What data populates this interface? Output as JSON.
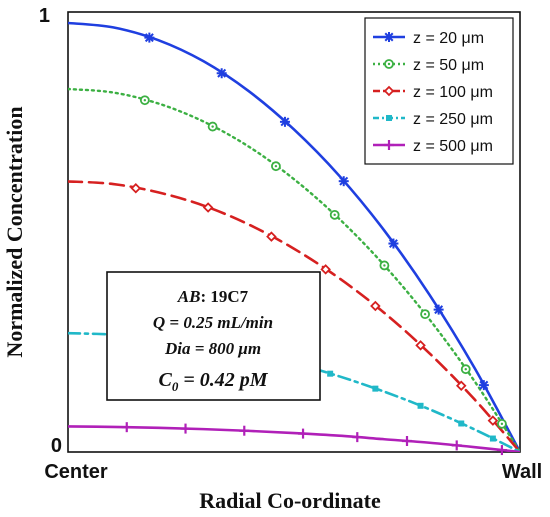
{
  "chart_data": {
    "type": "line",
    "title": "",
    "xlabel": "Radial Co-ordinate",
    "ylabel": "Normalized Concentration",
    "x_tick_labels": [
      "Center",
      "Wall"
    ],
    "y_tick_labels": [
      "0",
      "1"
    ],
    "xlim": [
      0,
      1
    ],
    "ylim": [
      0,
      1
    ],
    "grid": false,
    "legend_position": "top-right",
    "x": [
      0,
      0.1,
      0.2,
      0.3,
      0.4,
      0.5,
      0.6,
      0.7,
      0.8,
      0.9,
      1.0
    ],
    "series": [
      {
        "name": "z = 20 μm",
        "color": "#1f3fe0",
        "style": "solid",
        "marker": "asterisk",
        "values": [
          0.975,
          0.965,
          0.936,
          0.888,
          0.82,
          0.733,
          0.628,
          0.503,
          0.357,
          0.19,
          0.0
        ]
      },
      {
        "name": "z = 50 μm",
        "color": "#3cb043",
        "style": "dotted",
        "marker": "circle",
        "values": [
          0.825,
          0.817,
          0.792,
          0.751,
          0.694,
          0.62,
          0.53,
          0.424,
          0.301,
          0.16,
          0.0
        ]
      },
      {
        "name": "z = 100 μm",
        "color": "#d62020",
        "style": "dashed",
        "marker": "diamond",
        "values": [
          0.615,
          0.609,
          0.59,
          0.56,
          0.517,
          0.462,
          0.395,
          0.316,
          0.224,
          0.119,
          0.0
        ]
      },
      {
        "name": "z = 250 μm",
        "color": "#20b8c8",
        "style": "dashdot",
        "marker": "square",
        "values": [
          0.27,
          0.267,
          0.259,
          0.245,
          0.226,
          0.202,
          0.172,
          0.137,
          0.097,
          0.051,
          0.0
        ]
      },
      {
        "name": "z = 500 μm",
        "color": "#b020b8",
        "style": "solid",
        "marker": "plus",
        "values": [
          0.058,
          0.057,
          0.055,
          0.052,
          0.048,
          0.043,
          0.037,
          0.029,
          0.021,
          0.011,
          0.0
        ]
      }
    ],
    "marker_x": {
      "z = 20 μm": [
        0.18,
        0.34,
        0.48,
        0.61,
        0.72,
        0.82,
        0.92
      ],
      "z = 50 μm": [
        0.17,
        0.32,
        0.46,
        0.59,
        0.7,
        0.79,
        0.88,
        0.96
      ],
      "z = 100 μm": [
        0.15,
        0.31,
        0.45,
        0.57,
        0.68,
        0.78,
        0.87,
        0.94
      ],
      "z = 250 μm": [
        0.14,
        0.26,
        0.37,
        0.48,
        0.58,
        0.68,
        0.78,
        0.87,
        0.94
      ],
      "z = 500 μm": [
        0.13,
        0.26,
        0.39,
        0.52,
        0.64,
        0.75,
        0.86,
        0.96
      ]
    },
    "annotation": {
      "ab_label": "AB",
      "ab_value": ": 19C7",
      "q_line": "Q = 0.25 mL/min",
      "dia_line": "Dia = 800 μm",
      "c_label": "C",
      "c_sub": "0",
      "c_value": " = 0.42 pM"
    }
  }
}
